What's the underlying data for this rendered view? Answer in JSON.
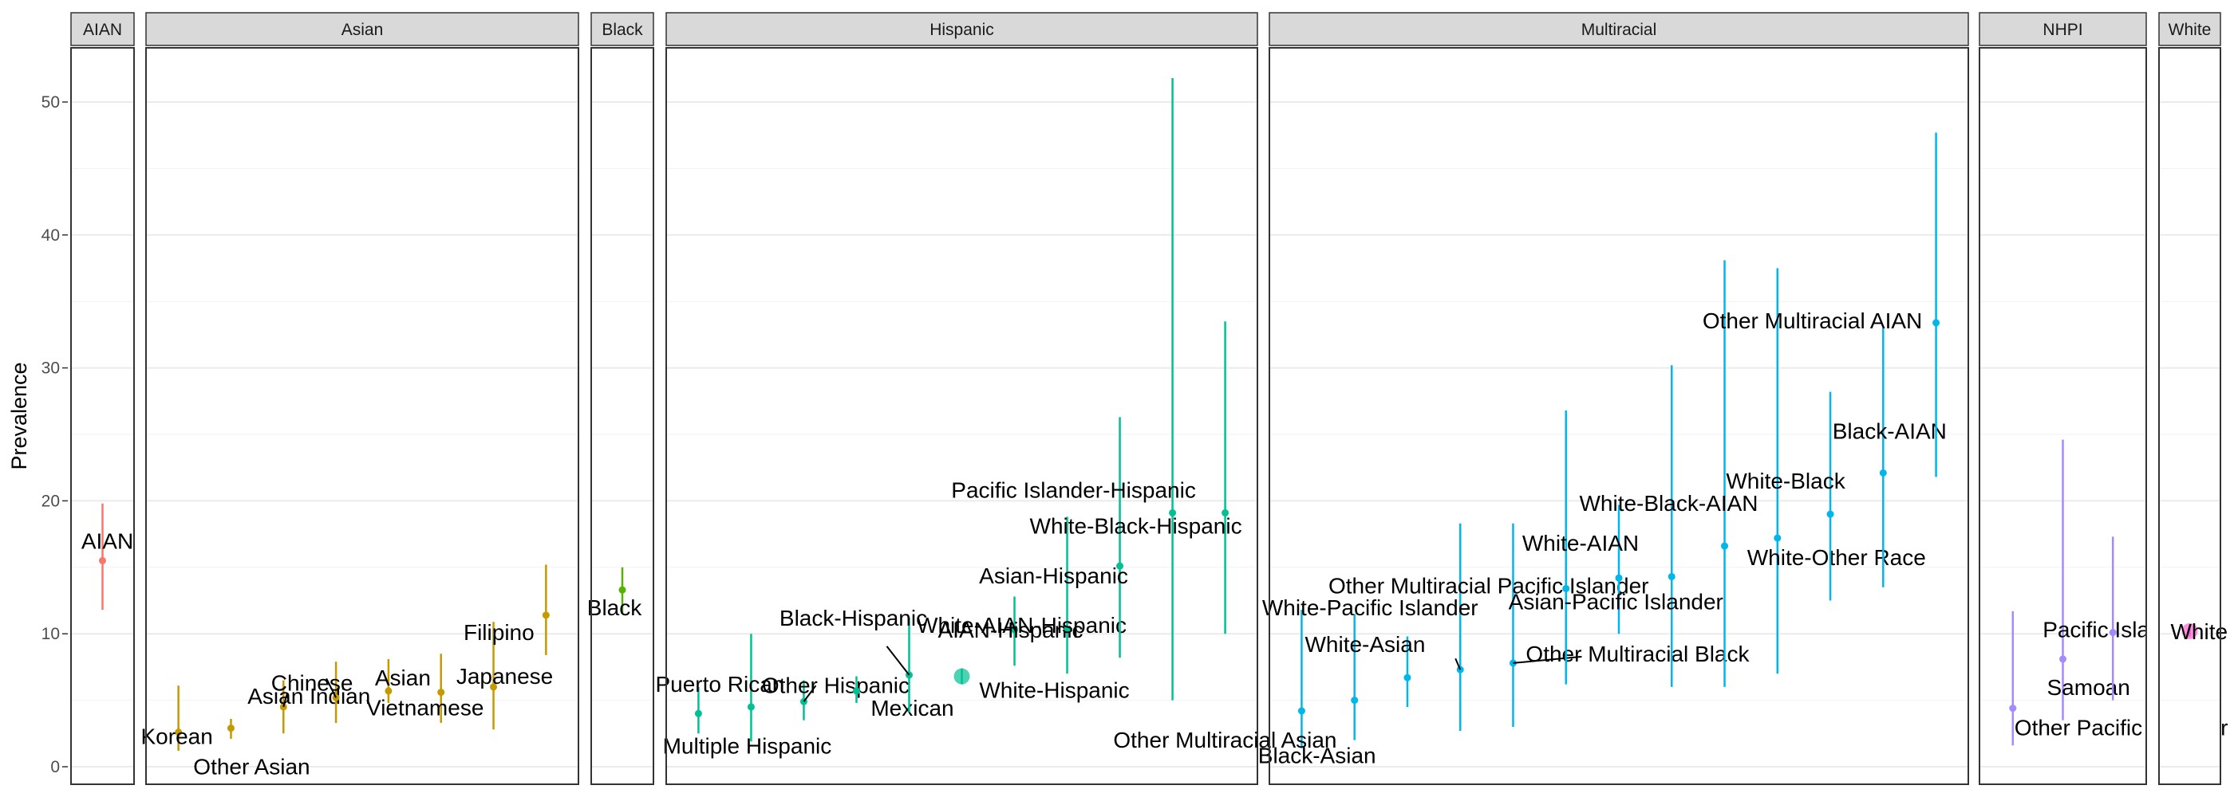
{
  "chart_data": {
    "type": "scatter",
    "subtype": "faceted point-range",
    "ylabel": "Prevalence",
    "ylim": [
      0,
      54
    ],
    "y_ticks": [
      0,
      10,
      20,
      30,
      40,
      50
    ],
    "grid": true,
    "legend": "none",
    "facets": [
      {
        "name": "AIAN",
        "color": "#F8766D",
        "points": [
          {
            "label": "AIAN",
            "value": 15.5,
            "lower": 11.8,
            "upper": 19.8
          }
        ]
      },
      {
        "name": "Asian",
        "color": "#C49A00",
        "points": [
          {
            "label": "Korean",
            "value": 2.6,
            "lower": 1.2,
            "upper": 6.1
          },
          {
            "label": "Other Asian",
            "value": 2.9,
            "lower": 2.1,
            "upper": 3.6
          },
          {
            "label": "Asian Indian",
            "value": 4.5,
            "lower": 2.5,
            "upper": 6.5
          },
          {
            "label": "Chinese",
            "value": 5.2,
            "lower": 3.3,
            "upper": 7.9
          },
          {
            "label": "Asian",
            "value": 5.7,
            "lower": 4.8,
            "upper": 8.1
          },
          {
            "label": "Vietnamese",
            "value": 5.6,
            "lower": 3.3,
            "upper": 8.5
          },
          {
            "label": "Japanese",
            "value": 6.0,
            "lower": 2.8,
            "upper": 10.9
          },
          {
            "label": "Filipino",
            "value": 11.4,
            "lower": 8.4,
            "upper": 15.2
          }
        ]
      },
      {
        "name": "Black",
        "color": "#53B400",
        "points": [
          {
            "label": "Black",
            "value": 13.3,
            "lower": 11.5,
            "upper": 15.0
          }
        ]
      },
      {
        "name": "Hispanic",
        "color": "#00C094",
        "points": [
          {
            "label": "Multiple Hispanic",
            "value": 4.0,
            "lower": 2.5,
            "upper": 6.0
          },
          {
            "label": "Puerto Rican",
            "value": 4.5,
            "lower": 1.9,
            "upper": 10.0
          },
          {
            "label": "Other Hispanic",
            "value": 4.9,
            "lower": 3.5,
            "upper": 6.5
          },
          {
            "label": "Mexican",
            "value": 5.7,
            "lower": 4.8,
            "upper": 6.8
          },
          {
            "label": "Black-Hispanic",
            "value": 6.9,
            "lower": 4.1,
            "upper": 11.2
          },
          {
            "label": "White-Hispanic",
            "value": 6.8,
            "lower": 6.2,
            "upper": 7.4
          },
          {
            "label": "AIAN-Hispanic",
            "value": 10.3,
            "lower": 7.6,
            "upper": 12.8
          },
          {
            "label": "White-AIAN-Hispanic",
            "value": 10.3,
            "lower": 7.0,
            "upper": 18.8
          },
          {
            "label": "Asian-Hispanic",
            "value": 15.1,
            "lower": 8.2,
            "upper": 26.3
          },
          {
            "label": "Pacific Islander-Hispanic",
            "value": 19.1,
            "lower": 5.0,
            "upper": 51.8
          },
          {
            "label": "White-Black-Hispanic",
            "value": 19.1,
            "lower": 10.0,
            "upper": 33.5
          }
        ]
      },
      {
        "name": "Multiracial",
        "color": "#00B6EB",
        "points": [
          {
            "label": "Other Multiracial Asian",
            "value": 4.2,
            "lower": 1.4,
            "upper": 11.8
          },
          {
            "label": "Black-Asian",
            "value": 5.0,
            "lower": 2.0,
            "upper": 11.5
          },
          {
            "label": "White-Asian",
            "value": 6.7,
            "lower": 4.5,
            "upper": 9.8
          },
          {
            "label": "White-Pacific Islander",
            "value": 7.3,
            "lower": 2.7,
            "upper": 18.3
          },
          {
            "label": "Other Multiracial Black",
            "value": 7.8,
            "lower": 3.0,
            "upper": 18.3
          },
          {
            "label": "Other Multiracial Pacific Islander",
            "value": 13.4,
            "lower": 6.2,
            "upper": 26.8
          },
          {
            "label": "White-AIAN",
            "value": 14.2,
            "lower": 10.0,
            "upper": 19.7
          },
          {
            "label": "Asian-Pacific Islander",
            "value": 14.3,
            "lower": 6.0,
            "upper": 30.2
          },
          {
            "label": "White-Black-AIAN",
            "value": 16.6,
            "lower": 6.0,
            "upper": 38.1
          },
          {
            "label": "White-Other Race",
            "value": 17.2,
            "lower": 7.0,
            "upper": 37.5
          },
          {
            "label": "White-Black",
            "value": 19.0,
            "lower": 12.5,
            "upper": 28.2
          },
          {
            "label": "Black-AIAN",
            "value": 22.1,
            "lower": 13.5,
            "upper": 33.0
          },
          {
            "label": "Other Multiracial AIAN",
            "value": 33.4,
            "lower": 21.8,
            "upper": 47.7
          }
        ]
      },
      {
        "name": "NHPI",
        "color": "#A58AFF",
        "points": [
          {
            "label": "Other Pacific Islander",
            "value": 4.4,
            "lower": 1.6,
            "upper": 11.7
          },
          {
            "label": "Samoan",
            "value": 8.1,
            "lower": 3.5,
            "upper": 24.6
          },
          {
            "label": "Pacific Islander",
            "value": 10.1,
            "lower": 5.0,
            "upper": 17.3
          }
        ]
      },
      {
        "name": "White",
        "color": "#FB61D7",
        "points": [
          {
            "label": "White",
            "value": 10.2,
            "lower": 9.8,
            "upper": 10.6
          }
        ]
      }
    ]
  }
}
